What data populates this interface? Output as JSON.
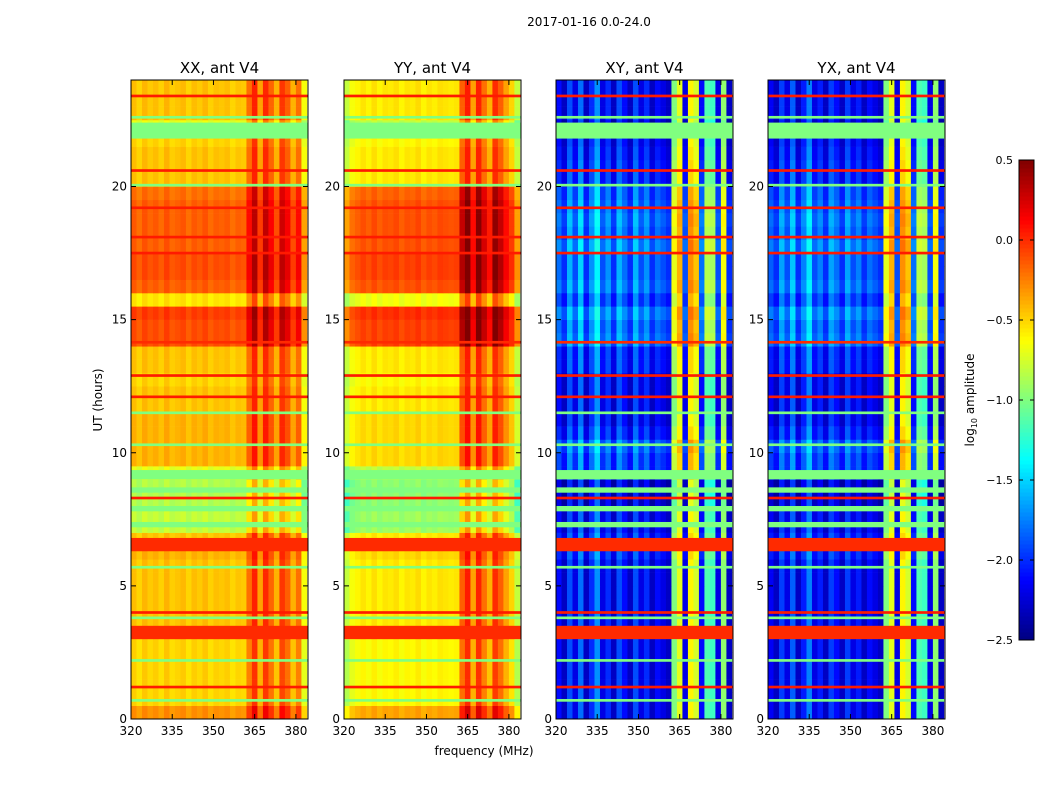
{
  "suptitle": "2017-01-16 0.0-24.0",
  "xlabel": "frequency (MHz)",
  "ylabel": "UT (hours)",
  "colorbar": {
    "label_log": "log",
    "label_sub": "10",
    "label_rest": " amplitude",
    "range": [
      -2.5,
      0.5
    ],
    "ticks": [
      0.5,
      0.0,
      -0.5,
      -1.0,
      -1.5,
      -2.0,
      -2.5
    ],
    "tick_labels": [
      "0.5",
      "0.0",
      "−0.5",
      "−1.0",
      "−1.5",
      "−2.0",
      "−2.5"
    ],
    "colormap": "jet"
  },
  "flagged_intervals": [
    {
      "t": [
        3.0,
        3.5
      ],
      "value": 0.0
    },
    {
      "t": [
        6.3,
        6.8
      ],
      "value": 0.0
    },
    {
      "t": [
        9.0,
        9.35
      ],
      "value": -1.0
    },
    {
      "t": [
        21.8,
        22.4
      ],
      "value": -1.0
    },
    {
      "t": [
        14.1,
        14.2
      ],
      "value": 0.0
    },
    {
      "t": [
        23.35,
        23.45
      ],
      "value": 0.05
    },
    {
      "t": [
        20.55,
        20.65
      ],
      "value": 0.05
    },
    {
      "t": [
        19.15,
        19.25
      ],
      "value": 0.05
    },
    {
      "t": [
        18.05,
        18.15
      ],
      "value": 0.05
    },
    {
      "t": [
        17.45,
        17.55
      ],
      "value": 0.05
    },
    {
      "t": [
        12.05,
        12.15
      ],
      "value": 0.05
    },
    {
      "t": [
        12.85,
        12.95
      ],
      "value": 0.05
    },
    {
      "t": [
        8.25,
        8.35
      ],
      "value": 0.05
    },
    {
      "t": [
        3.95,
        4.05
      ],
      "value": 0.05
    },
    {
      "t": [
        1.15,
        1.25
      ],
      "value": 0.05
    },
    {
      "t": [
        22.55,
        22.65
      ],
      "value": -1.0
    },
    {
      "t": [
        20.0,
        20.1
      ],
      "value": -1.0
    },
    {
      "t": [
        11.45,
        11.55
      ],
      "value": -1.0
    },
    {
      "t": [
        10.25,
        10.35
      ],
      "value": -1.0
    },
    {
      "t": [
        7.2,
        7.4
      ],
      "value": -1.0
    },
    {
      "t": [
        7.8,
        8.0
      ],
      "value": -1.0
    },
    {
      "t": [
        8.5,
        8.7
      ],
      "value": -1.0
    },
    {
      "t": [
        5.65,
        5.75
      ],
      "value": -1.0
    },
    {
      "t": [
        3.75,
        3.85
      ],
      "value": -1.0
    },
    {
      "t": [
        2.15,
        2.25
      ],
      "value": -1.0
    },
    {
      "t": [
        0.65,
        0.75
      ],
      "value": -1.0
    }
  ],
  "chart_data": [
    {
      "type": "heatmap",
      "title": "XX, ant V4",
      "xlim": [
        320,
        384.4
      ],
      "ylim": [
        0,
        24
      ],
      "xticks": [
        320,
        335,
        350,
        365,
        380
      ],
      "xtick_labels": [
        "320",
        "335",
        "350",
        "365",
        "380"
      ],
      "yticks": [
        0,
        5,
        10,
        15,
        20
      ],
      "ytick_labels": [
        "0",
        "5",
        "10",
        "15",
        "20"
      ],
      "freq_bin_MHz": 2,
      "time_bin_hours": 0.5,
      "freq_profile": [
        -0.38,
        -0.45,
        -0.36,
        -0.42,
        -0.38,
        -0.44,
        -0.35,
        -0.43,
        -0.4,
        -0.37,
        -0.45,
        -0.38,
        -0.42,
        -0.36,
        -0.44,
        -0.39,
        -0.41,
        -0.38,
        -0.45,
        -0.4,
        -0.42,
        -0.15,
        0.08,
        -0.3,
        0.06,
        -0.12,
        -0.35,
        0.02,
        -0.1,
        -0.35,
        -0.15,
        -0.6
      ],
      "time_offsets": [
        0.1,
        -0.1,
        -0.1,
        -0.1,
        -0.1,
        -0.1,
        0.0,
        -0.05,
        -0.05,
        -0.05,
        -0.05,
        -0.05,
        0.0,
        -0.05,
        -0.4,
        -0.4,
        -0.45,
        -0.45,
        -0.3,
        0.0,
        0.0,
        0.0,
        0.0,
        -0.05,
        -0.05,
        -0.1,
        -0.05,
        -0.05,
        0.3,
        0.3,
        0.35,
        -0.15,
        0.25,
        0.3,
        0.3,
        0.25,
        0.25,
        0.25,
        0.25,
        0.2,
        -0.05,
        -0.05,
        -0.05,
        -0.1,
        -0.3,
        -0.05,
        -0.05,
        -0.05
      ]
    },
    {
      "type": "heatmap",
      "title": "YY, ant V4",
      "xlim": [
        320,
        384.4
      ],
      "ylim": [
        0,
        24
      ],
      "xticks": [
        320,
        335,
        350,
        365,
        380
      ],
      "xtick_labels": [
        "320",
        "335",
        "350",
        "365",
        "380"
      ],
      "yticks": [
        0,
        5,
        10,
        15,
        20
      ],
      "ytick_labels": [
        "0",
        "5",
        "10",
        "15",
        "20"
      ],
      "freq_bin_MHz": 2,
      "time_bin_hours": 0.5,
      "freq_profile": [
        -0.75,
        -0.6,
        -0.55,
        -0.5,
        -0.55,
        -0.48,
        -0.55,
        -0.5,
        -0.52,
        -0.48,
        -0.55,
        -0.5,
        -0.52,
        -0.47,
        -0.55,
        -0.5,
        -0.53,
        -0.48,
        -0.5,
        -0.52,
        -0.5,
        -0.1,
        0.1,
        -0.3,
        0.08,
        -0.15,
        -0.35,
        0.05,
        -0.1,
        -0.3,
        -0.45,
        -0.75
      ],
      "time_offsets": [
        0.15,
        -0.1,
        -0.1,
        -0.1,
        -0.1,
        -0.1,
        0.0,
        -0.05,
        -0.05,
        -0.05,
        -0.05,
        -0.05,
        0.0,
        -0.05,
        -0.4,
        -0.4,
        -0.45,
        -0.45,
        -0.3,
        0.0,
        0.0,
        0.0,
        0.0,
        -0.05,
        -0.05,
        -0.1,
        -0.05,
        -0.05,
        0.45,
        0.45,
        0.5,
        -0.15,
        0.4,
        0.45,
        0.45,
        0.4,
        0.4,
        0.4,
        0.4,
        0.35,
        -0.05,
        -0.05,
        -0.05,
        -0.1,
        -0.3,
        -0.05,
        -0.05,
        -0.05
      ]
    },
    {
      "type": "heatmap",
      "title": "XY, ant V4",
      "xlim": [
        320,
        384.4
      ],
      "ylim": [
        0,
        24
      ],
      "xticks": [
        320,
        335,
        350,
        365,
        380
      ],
      "xtick_labels": [
        "320",
        "335",
        "350",
        "365",
        "380"
      ],
      "yticks": [
        0,
        5,
        10,
        15,
        20
      ],
      "ytick_labels": [
        "0",
        "5",
        "10",
        "15",
        "20"
      ],
      "freq_bin_MHz": 2,
      "time_bin_hours": 0.5,
      "freq_profile": [
        -2.1,
        -2.3,
        -1.9,
        -2.2,
        -1.8,
        -2.3,
        -2.0,
        -1.7,
        -2.2,
        -2.0,
        -2.3,
        -1.9,
        -2.1,
        -2.3,
        -1.9,
        -2.2,
        -2.0,
        -2.3,
        -2.1,
        -2.2,
        -2.3,
        -1.0,
        -0.7,
        -2.2,
        -0.6,
        -0.75,
        -2.1,
        -1.15,
        -1.2,
        -2.2,
        -0.95,
        -2.3
      ],
      "time_offsets": [
        0,
        0,
        0,
        0,
        0,
        0,
        0,
        0,
        0,
        0,
        0,
        0,
        0.1,
        0.1,
        0.0,
        0.0,
        -0.1,
        -0.1,
        0.2,
        0.2,
        0.3,
        0.1,
        0,
        0,
        0,
        0,
        0.1,
        0.1,
        0.35,
        0.3,
        0.4,
        0.2,
        0.35,
        0.3,
        0.3,
        0.4,
        0.3,
        0.35,
        0.3,
        0.25,
        0.1,
        0.1,
        0.05,
        0.0,
        -0.1,
        0,
        0,
        0
      ]
    },
    {
      "type": "heatmap",
      "title": "YX, ant V4",
      "xlim": [
        320,
        384.4
      ],
      "ylim": [
        0,
        24
      ],
      "xticks": [
        320,
        335,
        350,
        365,
        380
      ],
      "xtick_labels": [
        "320",
        "335",
        "350",
        "365",
        "380"
      ],
      "yticks": [
        0,
        5,
        10,
        15,
        20
      ],
      "ytick_labels": [
        "0",
        "5",
        "10",
        "15",
        "20"
      ],
      "freq_bin_MHz": 2,
      "time_bin_hours": 0.5,
      "freq_profile": [
        -2.15,
        -2.3,
        -1.95,
        -2.2,
        -1.85,
        -2.3,
        -2.05,
        -1.75,
        -2.2,
        -2.05,
        -2.3,
        -1.95,
        -2.1,
        -2.3,
        -1.95,
        -2.2,
        -2.05,
        -2.3,
        -2.1,
        -2.2,
        -2.3,
        -1.0,
        -0.7,
        -2.2,
        -0.6,
        -0.75,
        -2.1,
        -1.15,
        -1.2,
        -2.2,
        -0.95,
        -2.3
      ],
      "time_offsets": [
        0,
        0,
        0,
        0,
        0,
        0,
        0,
        0,
        0,
        0,
        0,
        0,
        0.1,
        0.1,
        0.0,
        0.0,
        -0.1,
        -0.1,
        0.2,
        0.2,
        0.3,
        0.1,
        0,
        0,
        0,
        0,
        0.1,
        0.1,
        0.35,
        0.3,
        0.4,
        0.2,
        0.35,
        0.3,
        0.3,
        0.4,
        0.3,
        0.35,
        0.3,
        0.25,
        0.1,
        0.1,
        0.05,
        0.0,
        -0.1,
        0,
        0,
        0
      ]
    }
  ]
}
